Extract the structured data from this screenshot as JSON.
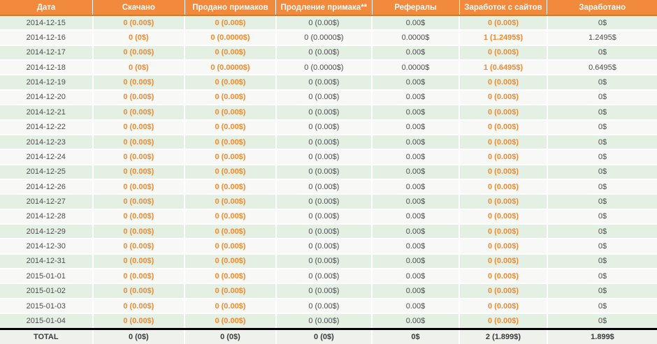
{
  "colors": {
    "header_bg": "#f18a3d",
    "header_text": "#fdfaf6",
    "header_bottom_border": "#cb7d2d",
    "row_green": "#e5f0e5",
    "row_white": "#f8f8f6",
    "total_row_bg": "#eef1ec",
    "total_row_top_border": "#000000",
    "value_orange": "#ee8b31",
    "text_dark": "#4c4c4e",
    "grid_line": "#ffffff"
  },
  "table": {
    "columns": [
      "Дата",
      "Скачано",
      "Продано примаков",
      "Продление примака**",
      "Рефералы",
      "Заработок с сайтов",
      "Заработано"
    ],
    "column_keys": [
      "date",
      "downloaded",
      "primaks-sold",
      "primak-renewal",
      "referrals",
      "site-earnings",
      "earned"
    ],
    "rows": [
      [
        "2014-12-15",
        "0 (0.00$)",
        "0 (0.00$)",
        "0 (0.00$)",
        "0.00$",
        "0 (0.00$)",
        "0$"
      ],
      [
        "2014-12-16",
        "0 (0$)",
        "0 (0.0000$)",
        "0 (0.0000$)",
        "0.0000$",
        "1 (1.2495$)",
        "1.2495$"
      ],
      [
        "2014-12-17",
        "0 (0.00$)",
        "0 (0.00$)",
        "0 (0.00$)",
        "0.00$",
        "0 (0.00$)",
        "0$"
      ],
      [
        "2014-12-18",
        "0 (0$)",
        "0 (0.0000$)",
        "0 (0.0000$)",
        "0.0000$",
        "1 (0.6495$)",
        "0.6495$"
      ],
      [
        "2014-12-19",
        "0 (0.00$)",
        "0 (0.00$)",
        "0 (0.00$)",
        "0.00$",
        "0 (0.00$)",
        "0$"
      ],
      [
        "2014-12-20",
        "0 (0.00$)",
        "0 (0.00$)",
        "0 (0.00$)",
        "0.00$",
        "0 (0.00$)",
        "0$"
      ],
      [
        "2014-12-21",
        "0 (0.00$)",
        "0 (0.00$)",
        "0 (0.00$)",
        "0.00$",
        "0 (0.00$)",
        "0$"
      ],
      [
        "2014-12-22",
        "0 (0.00$)",
        "0 (0.00$)",
        "0 (0.00$)",
        "0.00$",
        "0 (0.00$)",
        "0$"
      ],
      [
        "2014-12-23",
        "0 (0.00$)",
        "0 (0.00$)",
        "0 (0.00$)",
        "0.00$",
        "0 (0.00$)",
        "0$"
      ],
      [
        "2014-12-24",
        "0 (0.00$)",
        "0 (0.00$)",
        "0 (0.00$)",
        "0.00$",
        "0 (0.00$)",
        "0$"
      ],
      [
        "2014-12-25",
        "0 (0.00$)",
        "0 (0.00$)",
        "0 (0.00$)",
        "0.00$",
        "0 (0.00$)",
        "0$"
      ],
      [
        "2014-12-26",
        "0 (0.00$)",
        "0 (0.00$)",
        "0 (0.00$)",
        "0.00$",
        "0 (0.00$)",
        "0$"
      ],
      [
        "2014-12-27",
        "0 (0.00$)",
        "0 (0.00$)",
        "0 (0.00$)",
        "0.00$",
        "0 (0.00$)",
        "0$"
      ],
      [
        "2014-12-28",
        "0 (0.00$)",
        "0 (0.00$)",
        "0 (0.00$)",
        "0.00$",
        "0 (0.00$)",
        "0$"
      ],
      [
        "2014-12-29",
        "0 (0.00$)",
        "0 (0.00$)",
        "0 (0.00$)",
        "0.00$",
        "0 (0.00$)",
        "0$"
      ],
      [
        "2014-12-30",
        "0 (0.00$)",
        "0 (0.00$)",
        "0 (0.00$)",
        "0.00$",
        "0 (0.00$)",
        "0$"
      ],
      [
        "2014-12-31",
        "0 (0.00$)",
        "0 (0.00$)",
        "0 (0.00$)",
        "0.00$",
        "0 (0.00$)",
        "0$"
      ],
      [
        "2015-01-01",
        "0 (0.00$)",
        "0 (0.00$)",
        "0 (0.00$)",
        "0.00$",
        "0 (0.00$)",
        "0$"
      ],
      [
        "2015-01-02",
        "0 (0.00$)",
        "0 (0.00$)",
        "0 (0.00$)",
        "0.00$",
        "0 (0.00$)",
        "0$"
      ],
      [
        "2015-01-03",
        "0 (0.00$)",
        "0 (0.00$)",
        "0 (0.00$)",
        "0.00$",
        "0 (0.00$)",
        "0$"
      ],
      [
        "2015-01-04",
        "0 (0.00$)",
        "0 (0.00$)",
        "0 (0.00$)",
        "0.00$",
        "0 (0.00$)",
        "0$"
      ]
    ],
    "total": [
      "TOTAL",
      "0 (0$)",
      "0 (0$)",
      "0 (0$)",
      "0$",
      "2 (1.899$)",
      "1.899$"
    ]
  }
}
